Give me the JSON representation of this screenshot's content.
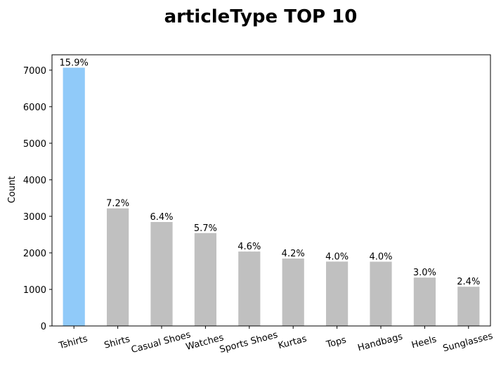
{
  "chart_data": {
    "type": "bar",
    "title": "articleType TOP 10",
    "xlabel": "",
    "ylabel": "Count",
    "categories": [
      "Tshirts",
      "Shirts",
      "Casual Shoes",
      "Watches",
      "Sports Shoes",
      "Kurtas",
      "Tops",
      "Handbags",
      "Heels",
      "Sunglasses"
    ],
    "values": [
      7067,
      3217,
      2845,
      2542,
      2036,
      1844,
      1762,
      1759,
      1323,
      1073
    ],
    "data_labels": [
      "15.9%",
      "7.2%",
      "6.4%",
      "5.7%",
      "4.6%",
      "4.2%",
      "4.0%",
      "4.0%",
      "3.0%",
      "2.4%"
    ],
    "yticks": [
      0,
      1000,
      2000,
      3000,
      4000,
      5000,
      6000,
      7000
    ],
    "ylim": [
      0,
      7420
    ],
    "grid": false,
    "highlight_color": "#90caf9",
    "bar_color": "#c0c0c0"
  }
}
